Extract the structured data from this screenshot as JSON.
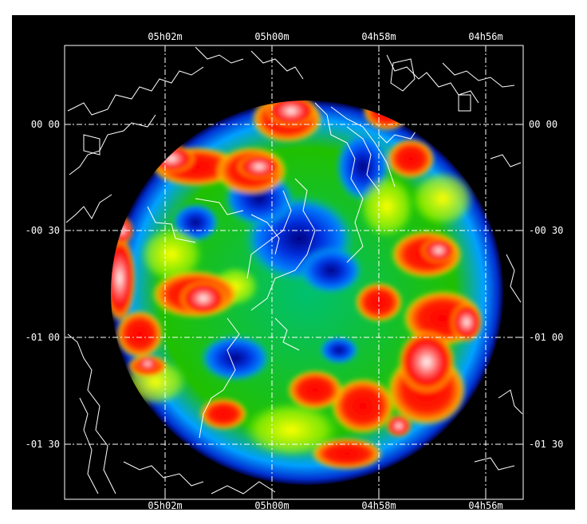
{
  "figure": {
    "background": "#000000",
    "frame_color": "#ffffff",
    "grid_style": "dash-dot",
    "ra_ticks": [
      "05h02m",
      "05h00m",
      "04h58m",
      "04h56m"
    ],
    "dec_ticks": [
      "00 00",
      "-00 30",
      "-01 00",
      "-01 30"
    ],
    "colormap": [
      "#000060",
      "#0020c0",
      "#0060ff",
      "#00c0c0",
      "#00d000",
      "#ffff00",
      "#ff8000",
      "#ff0000",
      "#ffffff"
    ]
  }
}
